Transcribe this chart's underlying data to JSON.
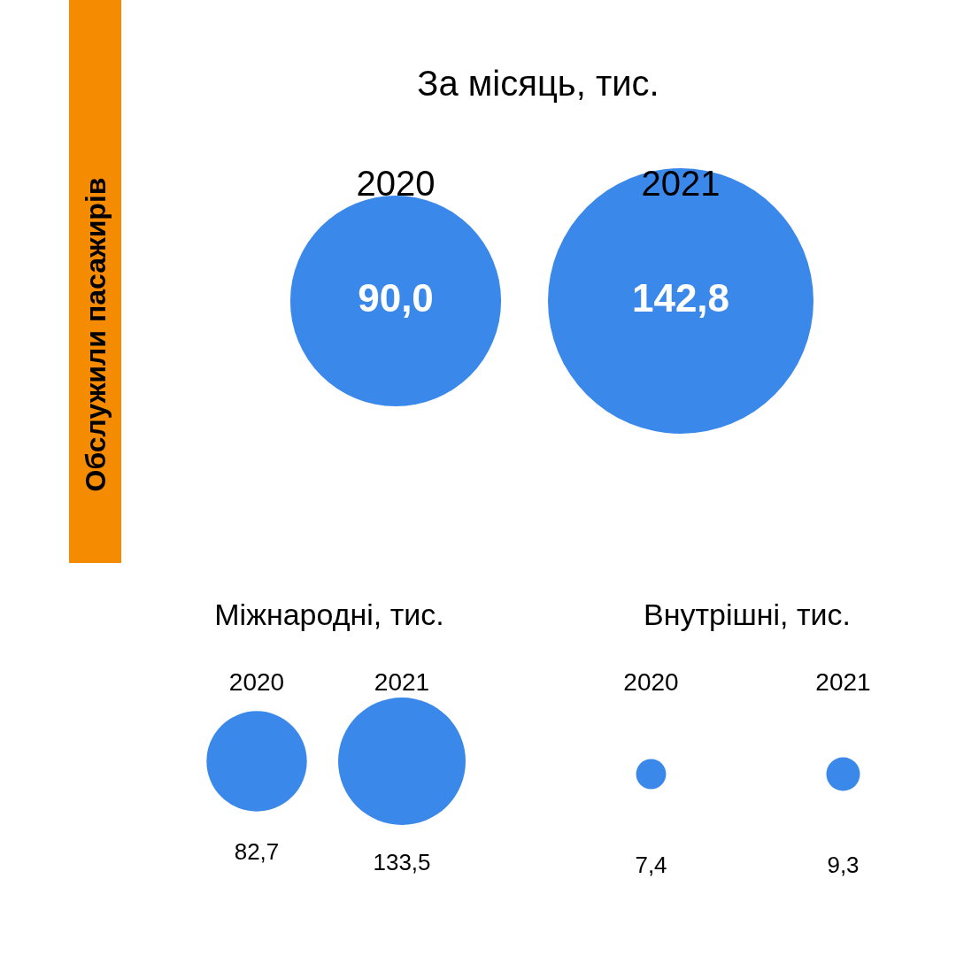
{
  "chart_data": [
    {
      "type": "other",
      "title": "За місяць, тис.",
      "ylabel": "Обслужили пасажирів",
      "categories": [
        "2020",
        "2021"
      ],
      "values": [
        90.0,
        142.8
      ],
      "value_labels": [
        "90,0",
        "142,8"
      ],
      "color": "#3b88eb",
      "legend": false
    },
    {
      "type": "other",
      "title": "Міжнародні, тис.",
      "categories": [
        "2020",
        "2021"
      ],
      "values": [
        82.7,
        133.5
      ],
      "value_labels": [
        "82,7",
        "133,5"
      ],
      "color": "#3b88eb",
      "legend": false
    },
    {
      "type": "other",
      "title": "Внутрішні, тис.",
      "categories": [
        "2020",
        "2021"
      ],
      "values": [
        7.4,
        9.3
      ],
      "value_labels": [
        "7,4",
        "9,3"
      ],
      "color": "#3b88eb",
      "legend": false
    }
  ]
}
